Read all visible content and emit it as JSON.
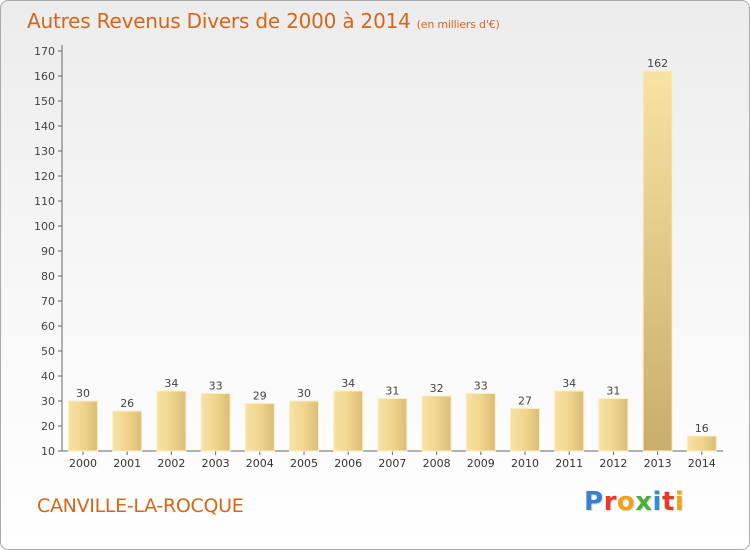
{
  "title": "Autres Revenus Divers de 2000 à 2014",
  "subtitle": "(en milliers d'€)",
  "location": "CANVILLE-LA-ROCQUE",
  "logo_text": "Proxiti",
  "colors": {
    "title": "#d4661a",
    "bar_light": "#f5dc98",
    "bar_dark": "#c8ab68",
    "grid": "#7a7a7a"
  },
  "chart_data": {
    "type": "bar",
    "title": "Autres Revenus Divers de 2000 à 2014",
    "subtitle": "(en milliers d'€)",
    "xlabel": "",
    "ylabel": "",
    "categories": [
      "2000",
      "2001",
      "2002",
      "2003",
      "2004",
      "2005",
      "2006",
      "2007",
      "2008",
      "2009",
      "2010",
      "2011",
      "2012",
      "2013",
      "2014"
    ],
    "values": [
      30,
      26,
      34,
      33,
      29,
      30,
      34,
      31,
      32,
      33,
      27,
      34,
      31,
      162,
      16
    ],
    "ylim": [
      10,
      170
    ],
    "yticks": [
      10,
      20,
      30,
      40,
      50,
      60,
      70,
      80,
      90,
      100,
      110,
      120,
      130,
      140,
      150,
      160,
      170
    ],
    "grid": false,
    "data_labels": true
  }
}
